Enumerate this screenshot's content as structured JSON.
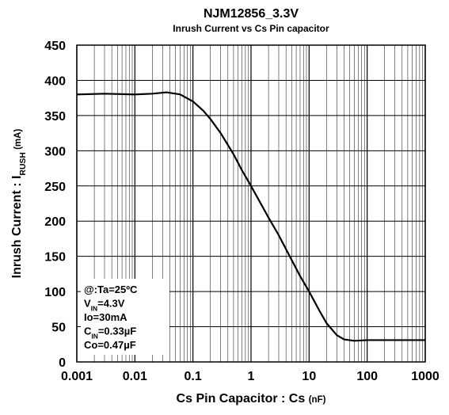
{
  "chart_data": {
    "type": "line",
    "title": "NJM12856_3.3V",
    "subtitle": "Inrush Current vs Cs Pin capacitor",
    "x_label": [
      {
        "text": "Cs Pin Capacitor : Cs "
      },
      {
        "text": "(nF)",
        "small": true
      }
    ],
    "y_label": [
      {
        "text": "Inrush Current : I"
      },
      {
        "text": "RUSH",
        "sub": true
      },
      {
        "text": "  (mA)",
        "small": true
      }
    ],
    "xscale": "log",
    "xlim": [
      0.001,
      1000
    ],
    "xticks": [
      0.001,
      0.01,
      0.1,
      1,
      10,
      100,
      1000
    ],
    "ylim": [
      0,
      450
    ],
    "yticks": [
      0,
      50,
      100,
      150,
      200,
      250,
      300,
      350,
      400,
      450
    ],
    "grid": true,
    "series": [
      {
        "color": "#000000",
        "x": [
          0.001,
          0.003,
          0.01,
          0.02,
          0.035,
          0.06,
          0.1,
          0.15,
          0.2,
          0.3,
          0.5,
          0.7,
          1,
          2,
          3,
          5,
          7,
          10,
          15,
          20,
          30,
          40,
          60,
          100,
          300,
          1000
        ],
        "values": [
          380,
          381,
          380,
          381,
          383,
          380,
          370,
          357,
          345,
          325,
          295,
          272,
          250,
          205,
          180,
          145,
          122,
          100,
          73,
          55,
          38,
          32,
          30,
          31,
          31,
          31
        ]
      }
    ],
    "annotation": [
      [
        {
          "text": "@:Ta=25ºC"
        }
      ],
      [
        {
          "text": "V"
        },
        {
          "text": "IN",
          "sub": true
        },
        {
          "text": "=4.3V"
        }
      ],
      [
        {
          "text": "Io=30mA"
        }
      ],
      [
        {
          "text": "C"
        },
        {
          "text": "IN",
          "sub": true
        },
        {
          "text": "=0.33µF"
        }
      ],
      [
        {
          "text": "Co=0.47µF"
        }
      ]
    ]
  }
}
